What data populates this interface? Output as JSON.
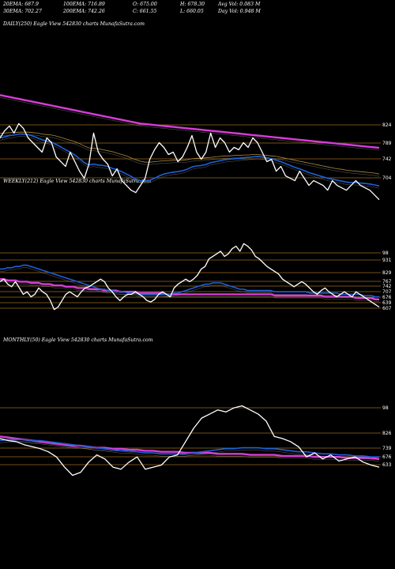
{
  "header": {
    "row1": [
      "20EMA: 687.9",
      "100EMA: 716.89",
      "O: 675.00",
      "H: 678.30",
      "Avg Vol: 0.083 M"
    ],
    "row2": [
      "30EMA: 702.27",
      "200EMA: 742.26",
      "C: 661.55",
      "L: 660.05",
      "Day Vol: 0.948 M"
    ]
  },
  "colors": {
    "price": "#ffffff",
    "ema_blue": "#1f5fd8",
    "ema_magenta": "#d83cd8",
    "ema_gold": "#b08a3c",
    "level_line": "#9b6a1e",
    "background": "#000000"
  },
  "chart_data": [
    {
      "type": "line",
      "label": "DAILY(250) Eagle  View  542830  charts MunafaSutra.com",
      "levels": [
        824,
        789,
        742,
        704
      ],
      "ylim": [
        640,
        880
      ],
      "series": [
        {
          "role": "price",
          "values": [
            790,
            805,
            815,
            800,
            820,
            810,
            790,
            780,
            770,
            760,
            790,
            780,
            750,
            740,
            730,
            760,
            740,
            720,
            705,
            735,
            800,
            760,
            745,
            735,
            710,
            725,
            700,
            690,
            680,
            675,
            690,
            705,
            745,
            765,
            780,
            770,
            755,
            760,
            740,
            750,
            770,
            795,
            760,
            745,
            760,
            800,
            770,
            790,
            780,
            760,
            770,
            765,
            780,
            770,
            790,
            780,
            760,
            740,
            745,
            720,
            730,
            710,
            705,
            700,
            720,
            705,
            690,
            700,
            695,
            690,
            680,
            700,
            690,
            685,
            680,
            690,
            700,
            690,
            685,
            680,
            670,
            660
          ]
        },
        {
          "role": "ema-blue",
          "values": [
            790,
            792,
            795,
            796,
            798,
            798,
            797,
            794,
            790,
            786,
            783,
            781,
            776,
            771,
            765,
            760,
            754,
            746,
            738,
            733,
            735,
            733,
            732,
            730,
            726,
            723,
            719,
            714,
            709,
            703,
            700,
            699,
            701,
            705,
            710,
            714,
            716,
            718,
            719,
            721,
            724,
            729,
            731,
            732,
            734,
            738,
            740,
            742,
            744,
            745,
            746,
            747,
            748,
            749,
            750,
            751,
            750,
            748,
            746,
            743,
            740,
            736,
            732,
            728,
            725,
            721,
            717,
            714,
            711,
            708,
            705,
            703,
            701,
            699,
            697,
            696,
            696,
            695,
            694,
            693,
            691,
            689
          ]
        },
        {
          "role": "ema-gold",
          "values": [
            800,
            800,
            801,
            801,
            802,
            802,
            802,
            801,
            800,
            798,
            797,
            796,
            794,
            791,
            788,
            785,
            782,
            778,
            773,
            769,
            768,
            767,
            765,
            763,
            761,
            758,
            755,
            752,
            748,
            744,
            741,
            739,
            739,
            740,
            741,
            742,
            742,
            743,
            743,
            743,
            744,
            746,
            747,
            747,
            748,
            749,
            750,
            751,
            752,
            752,
            753,
            753,
            754,
            754,
            755,
            755,
            754,
            753,
            752,
            751,
            749,
            747,
            745,
            743,
            741,
            739,
            737,
            735,
            733,
            731,
            729,
            727,
            725,
            724,
            722,
            721,
            720,
            719,
            718,
            717,
            716,
            714
          ]
        },
        {
          "role": "ema-magenta",
          "values": [
            880,
            878,
            876,
            874,
            872,
            870,
            868,
            866,
            864,
            862,
            860,
            858,
            856,
            854,
            852,
            850,
            848,
            846,
            844,
            842,
            840,
            838,
            836,
            834,
            832,
            830,
            828,
            826,
            824,
            822,
            820,
            819,
            818,
            817,
            816,
            815,
            814,
            813,
            812,
            811,
            810,
            809,
            808,
            807,
            806,
            805,
            804,
            803,
            802,
            801,
            800,
            799,
            798,
            797,
            796,
            795,
            794,
            793,
            792,
            791,
            790,
            789,
            788,
            787,
            786,
            785,
            784,
            783,
            782,
            781,
            780,
            779,
            778,
            777,
            776,
            775,
            774,
            773,
            772,
            771,
            770,
            769
          ]
        }
      ]
    },
    {
      "type": "line",
      "label": "WEEKLY(212) Eagle  View  542830  charts MunafaSutra.com",
      "levels": [
        98,
        931,
        829,
        767,
        742,
        707,
        676,
        639,
        607
      ],
      "series": [
        {
          "role": "price",
          "values": [
            60,
            62,
            58,
            56,
            60,
            55,
            50,
            52,
            48,
            50,
            55,
            52,
            50,
            45,
            38,
            40,
            45,
            50,
            52,
            50,
            48,
            52,
            55,
            56,
            58,
            60,
            62,
            60,
            55,
            52,
            48,
            45,
            48,
            50,
            50,
            52,
            50,
            48,
            45,
            44,
            46,
            50,
            52,
            50,
            48,
            55,
            58,
            60,
            62,
            60,
            62,
            65,
            70,
            72,
            78,
            80,
            82,
            84,
            80,
            82,
            86,
            88,
            84,
            90,
            88,
            85,
            80,
            78,
            75,
            72,
            70,
            68,
            66,
            62,
            60,
            58,
            56,
            58,
            60,
            58,
            55,
            52,
            50,
            53,
            55,
            52,
            50,
            48,
            50,
            52,
            50,
            48,
            52,
            50,
            48,
            46,
            44,
            42,
            40
          ]
        },
        {
          "role": "ema-blue",
          "values": [
            70,
            70,
            71,
            71,
            72,
            72,
            73,
            73,
            72,
            71,
            70,
            69,
            68,
            67,
            66,
            65,
            64,
            63,
            62,
            61,
            60,
            59,
            58,
            57,
            56,
            55,
            54,
            54,
            53,
            53,
            52,
            52,
            52,
            51,
            51,
            51,
            50,
            50,
            50,
            50,
            50,
            50,
            50,
            50,
            50,
            51,
            51,
            52,
            53,
            54,
            55,
            56,
            57,
            58,
            58,
            59,
            59,
            59,
            58,
            57,
            56,
            55,
            54,
            54,
            53,
            53,
            53,
            53,
            53,
            53,
            53,
            52,
            52,
            52,
            52,
            52,
            52,
            52,
            52,
            52,
            51,
            51,
            51,
            51,
            51,
            51,
            51,
            51,
            50,
            50,
            50,
            50,
            50,
            50,
            49,
            49,
            49,
            48,
            48
          ]
        },
        {
          "role": "ema-magenta",
          "values": [
            62,
            62,
            61,
            61,
            61,
            60,
            60,
            60,
            59,
            59,
            59,
            58,
            58,
            58,
            57,
            57,
            57,
            56,
            56,
            56,
            55,
            55,
            55,
            54,
            54,
            54,
            54,
            53,
            53,
            53,
            53,
            52,
            52,
            52,
            52,
            52,
            51,
            51,
            51,
            51,
            51,
            51,
            51,
            50,
            50,
            50,
            50,
            50,
            50,
            50,
            50,
            50,
            50,
            50,
            50,
            50,
            50,
            50,
            50,
            50,
            50,
            50,
            50,
            50,
            50,
            50,
            50,
            50,
            50,
            50,
            50,
            49,
            49,
            49,
            49,
            49,
            49,
            49,
            49,
            49,
            49,
            49,
            49,
            49,
            48,
            48,
            48,
            48,
            48,
            48,
            48,
            48,
            47,
            47,
            47,
            47,
            47,
            46,
            46
          ]
        }
      ]
    },
    {
      "type": "line",
      "label": "MONTHLY(50) Eagle  View  542830  charts MunafaSutra.com",
      "levels": [
        98,
        826,
        739,
        676,
        633
      ],
      "series": [
        {
          "role": "price",
          "values": [
            58,
            56,
            55,
            52,
            50,
            48,
            45,
            40,
            30,
            22,
            25,
            35,
            42,
            38,
            30,
            28,
            35,
            40,
            28,
            30,
            32,
            40,
            42,
            55,
            68,
            78,
            82,
            86,
            84,
            88,
            90,
            86,
            82,
            75,
            60,
            58,
            55,
            50,
            40,
            44,
            38,
            42,
            36,
            38,
            40,
            35,
            32,
            30
          ]
        },
        {
          "role": "ema-blue",
          "values": [
            56,
            57,
            57,
            57,
            56,
            56,
            55,
            54,
            53,
            52,
            51,
            50,
            49,
            48,
            47,
            46,
            46,
            45,
            44,
            44,
            43,
            43,
            43,
            43,
            44,
            45,
            46,
            47,
            48,
            48,
            49,
            49,
            49,
            48,
            48,
            47,
            46,
            45,
            45,
            44,
            43,
            43,
            42,
            42,
            41,
            41,
            40,
            40
          ]
        },
        {
          "role": "ema-magenta",
          "values": [
            60,
            59,
            58,
            57,
            56,
            55,
            54,
            53,
            52,
            51,
            51,
            50,
            49,
            49,
            48,
            48,
            47,
            47,
            46,
            46,
            45,
            45,
            45,
            44,
            44,
            44,
            44,
            43,
            43,
            43,
            43,
            42,
            42,
            42,
            42,
            41,
            41,
            41,
            41,
            40,
            40,
            40,
            40,
            39,
            39,
            39,
            39,
            38
          ]
        }
      ]
    }
  ]
}
